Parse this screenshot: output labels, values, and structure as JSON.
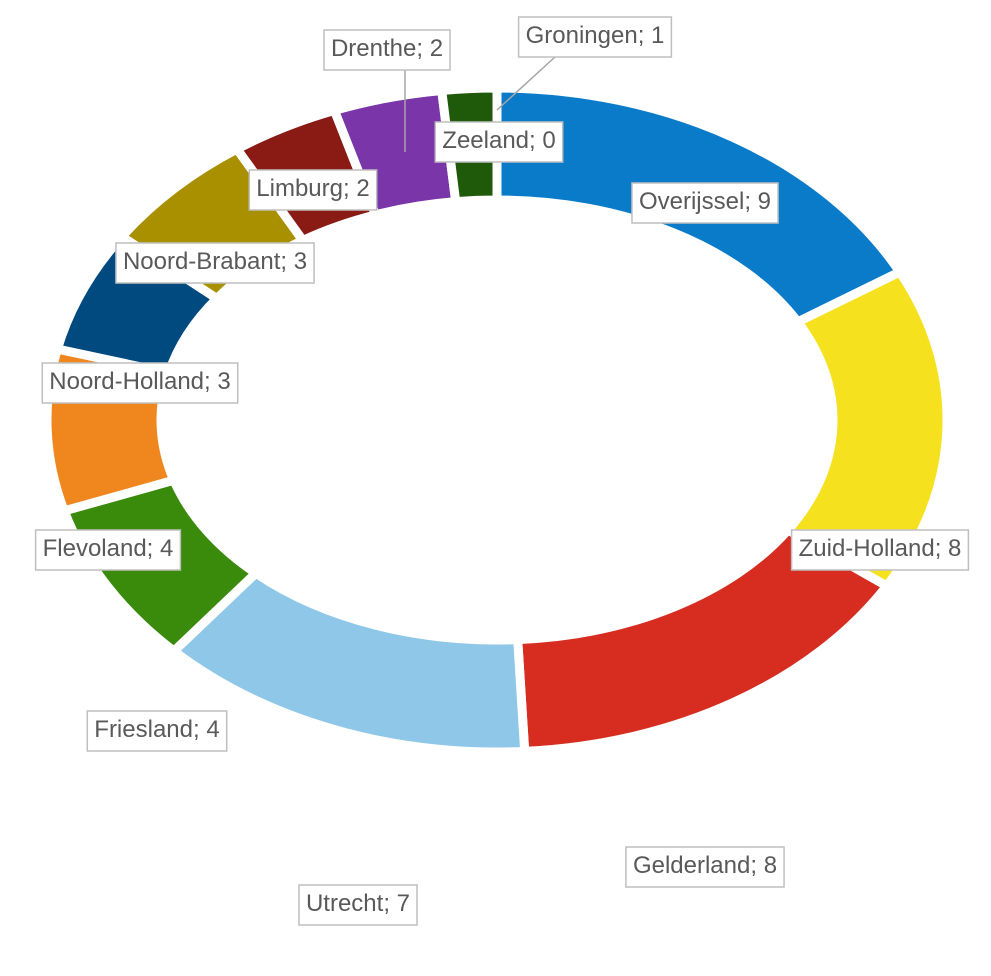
{
  "chart_data": {
    "type": "donut",
    "categories": [
      "Overijssel",
      "Zuid-Holland",
      "Gelderland",
      "Utrecht",
      "Friesland",
      "Flevoland",
      "Noord-Holland",
      "Noord-Brabant",
      "Limburg",
      "Drenthe",
      "Groningen",
      "Zeeland"
    ],
    "values": [
      9,
      8,
      8,
      7,
      4,
      4,
      3,
      3,
      2,
      2,
      1,
      0
    ],
    "colors": [
      "#0a7bc9",
      "#f6e11e",
      "#d62d20",
      "#8fc7e8",
      "#3a8a0c",
      "#f0861e",
      "#004a80",
      "#a89000",
      "#8a1a14",
      "#7a35a8",
      "#1f5a0a",
      "#4f6d2a"
    ],
    "label_separator": "; "
  }
}
